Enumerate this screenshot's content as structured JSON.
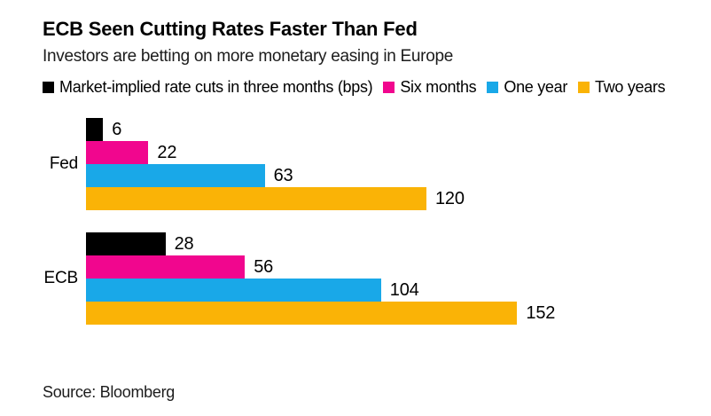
{
  "page": {
    "title": "ECB Seen Cutting Rates Faster Than Fed",
    "subtitle": "Investors are betting on more monetary easing in Europe",
    "source": "Source: Bloomberg"
  },
  "chart_data": {
    "type": "bar",
    "orientation": "horizontal",
    "title": "ECB Seen Cutting Rates Faster Than Fed",
    "subtitle": "Investors are betting on more monetary easing in Europe",
    "unit": "bps",
    "categories": [
      "Fed",
      "ECB"
    ],
    "series": [
      {
        "name": "Market-implied rate cuts in three months (bps)",
        "color": "#000000",
        "values": [
          6,
          28
        ]
      },
      {
        "name": "Six months",
        "color": "#f1068e",
        "values": [
          22,
          56
        ]
      },
      {
        "name": "One year",
        "color": "#19a8e8",
        "values": [
          63,
          104
        ]
      },
      {
        "name": "Two years",
        "color": "#fab306",
        "values": [
          120,
          152
        ]
      }
    ],
    "value_labels": [
      [
        6,
        22,
        63,
        120
      ],
      [
        28,
        56,
        104,
        152
      ]
    ],
    "xlim": [
      0,
      160
    ],
    "grid": false,
    "axes_shown": false,
    "legend_position": "top",
    "source": "Source: Bloomberg"
  }
}
